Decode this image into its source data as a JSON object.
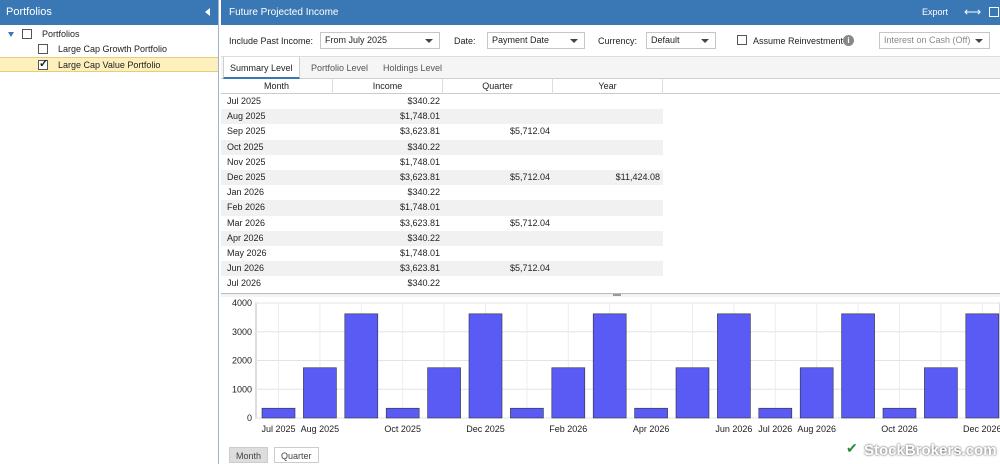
{
  "left_panel": {
    "title": "Portfolios",
    "tree": [
      {
        "label": "Portfolios",
        "checked": false,
        "level": 0
      },
      {
        "label": "Large Cap Growth Portfolio",
        "checked": false,
        "level": 1
      },
      {
        "label": "Large Cap Value Portfolio",
        "checked": true,
        "level": 1,
        "selected": true
      }
    ]
  },
  "header": {
    "title": "Future Projected Income",
    "export_label": "Export",
    "swap_icon": "arrows-horizontal-icon",
    "popout_icon": "popout-icon"
  },
  "controls": {
    "past_income_label": "Include Past Income:",
    "past_income_value": "From July 2025",
    "date_label": "Date:",
    "date_value": "Payment Date",
    "currency_label": "Currency:",
    "currency_value": "Default",
    "reinvest_label": "Assume Reinvestment",
    "reinvest_checked": false,
    "cash_value": "Interest on Cash (Off)"
  },
  "tabs": [
    "Summary Level",
    "Portfolio Level",
    "Holdings Level"
  ],
  "grid": {
    "columns": [
      "Month",
      "Income",
      "Quarter",
      "Year"
    ],
    "rows": [
      {
        "month": "Jul 2025",
        "income": "$340.22",
        "quarter": "",
        "year": ""
      },
      {
        "month": "Aug 2025",
        "income": "$1,748.01",
        "quarter": "",
        "year": ""
      },
      {
        "month": "Sep 2025",
        "income": "$3,623.81",
        "quarter": "$5,712.04",
        "year": ""
      },
      {
        "month": "Oct 2025",
        "income": "$340.22",
        "quarter": "",
        "year": ""
      },
      {
        "month": "Nov 2025",
        "income": "$1,748.01",
        "quarter": "",
        "year": ""
      },
      {
        "month": "Dec 2025",
        "income": "$3,623.81",
        "quarter": "$5,712.04",
        "year": "$11,424.08"
      },
      {
        "month": "Jan 2026",
        "income": "$340.22",
        "quarter": "",
        "year": ""
      },
      {
        "month": "Feb 2026",
        "income": "$1,748.01",
        "quarter": "",
        "year": ""
      },
      {
        "month": "Mar 2026",
        "income": "$3,623.81",
        "quarter": "$5,712.04",
        "year": ""
      },
      {
        "month": "Apr 2026",
        "income": "$340.22",
        "quarter": "",
        "year": ""
      },
      {
        "month": "May 2026",
        "income": "$1,748.01",
        "quarter": "",
        "year": ""
      },
      {
        "month": "Jun 2026",
        "income": "$3,623.81",
        "quarter": "$5,712.04",
        "year": ""
      },
      {
        "month": "Jul 2026",
        "income": "$340.22",
        "quarter": "",
        "year": ""
      }
    ]
  },
  "chart_data": {
    "type": "bar",
    "categories": [
      "Jul 2025",
      "Aug 2025",
      "Sep 2025",
      "Oct 2025",
      "Nov 2025",
      "Dec 2025",
      "Jan 2026",
      "Feb 2026",
      "Mar 2026",
      "Apr 2026",
      "May 2026",
      "Jun 2026",
      "Jul 2026",
      "Aug 2026",
      "Sep 2026",
      "Oct 2026",
      "Nov 2026",
      "Dec 2026"
    ],
    "visible_tick_labels": [
      "Jul 2025",
      "Aug 2025",
      "Oct 2025",
      "Dec 2025",
      "Feb 2026",
      "Apr 2026",
      "Jun 2026",
      "Jul 2026",
      "Aug 2026",
      "Oct 2026",
      "Dec 2026"
    ],
    "values": [
      340.22,
      1748.01,
      3623.81,
      340.22,
      1748.01,
      3623.81,
      340.22,
      1748.01,
      3623.81,
      340.22,
      1748.01,
      3623.81,
      340.22,
      1748.01,
      3623.81,
      340.22,
      1748.01,
      3623.81
    ],
    "yticks": [
      0,
      1000,
      2000,
      3000,
      4000
    ],
    "ylim": [
      0,
      4000
    ],
    "bar_color": "#5a5af5",
    "grid": true
  },
  "chart_tabs": [
    "Month",
    "Quarter"
  ],
  "watermark": "StockBrokers.com"
}
